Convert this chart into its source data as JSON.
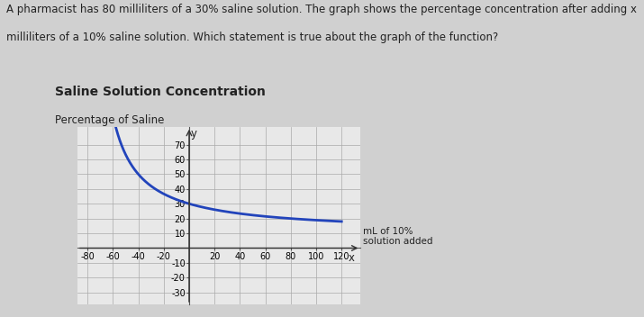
{
  "title": "Saline Solution Concentration",
  "ylabel": "Percentage of Saline",
  "xlabel_annotation": "mL of 10%\nsolution added",
  "xlabel_x_var": "x",
  "fig_bg_color": "#d0d0d0",
  "plot_bg_color": "#e8e8e8",
  "curve_color": "#2244bb",
  "curve_linewidth": 2.0,
  "x_data_start": -79,
  "x_data_end": 120,
  "x_axis_min": -88,
  "x_axis_max": 135,
  "y_axis_min": -38,
  "y_axis_max": 82,
  "x_ticks": [
    -80,
    -60,
    -40,
    -20,
    20,
    40,
    60,
    80,
    100,
    120
  ],
  "y_ticks": [
    -30,
    -20,
    -10,
    10,
    20,
    30,
    40,
    50,
    60,
    70
  ],
  "tick_fontsize": 7,
  "text_color": "#222222",
  "description_text_line1": "A pharmacist has 80 milliliters of a 30% saline solution. The graph shows the percentage concentration after adding x",
  "description_text_line2": "milliliters of a 10% saline solution. Which statement is true about the graph of the function?",
  "saline_initial_volume": 80,
  "saline_initial_concentration": 0.3,
  "added_concentration": 0.1,
  "title_fontsize": 10,
  "ylabel_fontsize": 8.5,
  "desc_fontsize": 8.5,
  "annot_fontsize": 7.5
}
